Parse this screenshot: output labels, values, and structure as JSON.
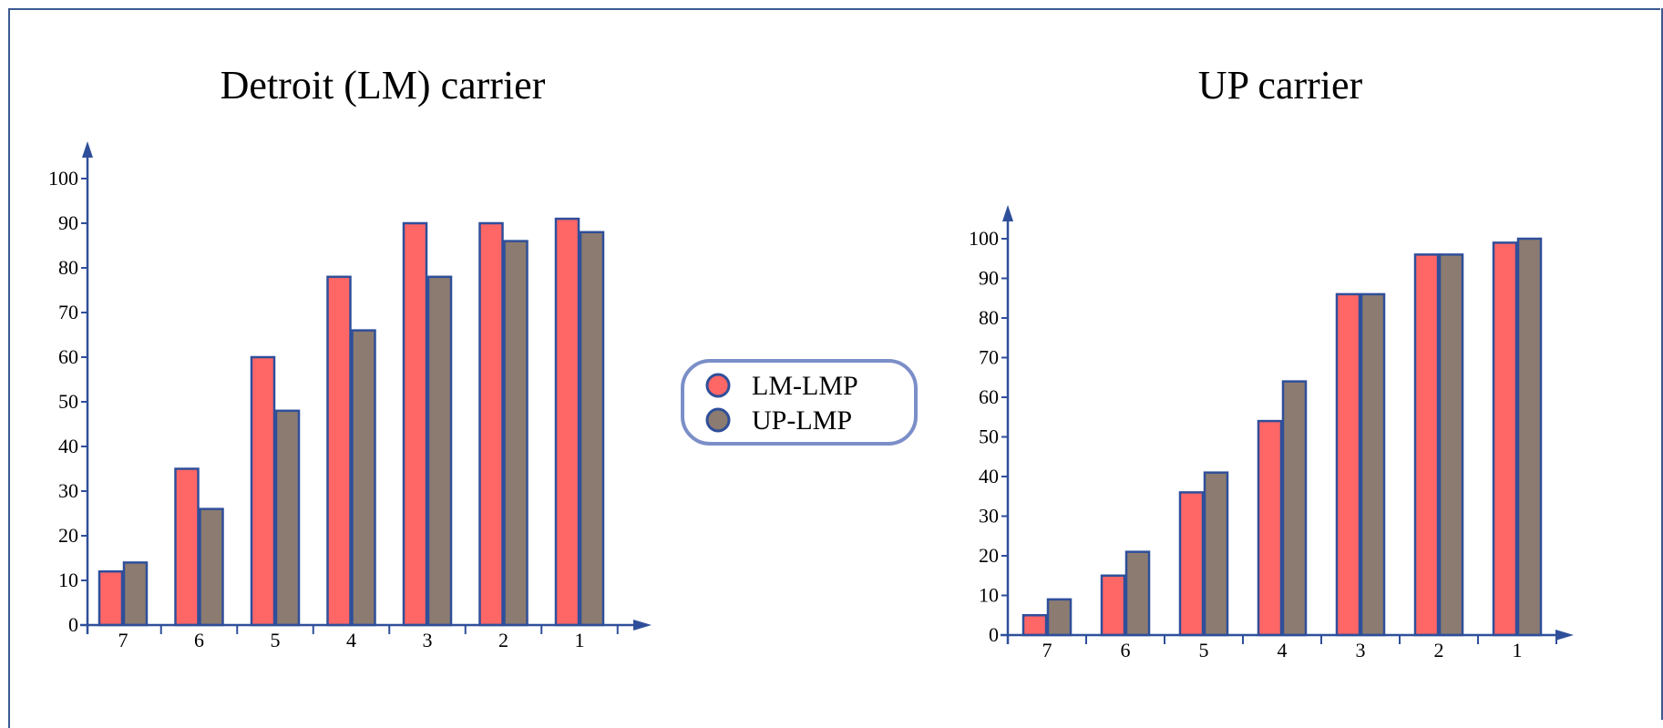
{
  "colors": {
    "axis": "#2f4f9a",
    "bar_outline": "#2f4f9a",
    "legend_border": "#7b8ec8",
    "frame": "#3c5a92"
  },
  "legend": {
    "placement": "center",
    "items": [
      {
        "label": "LM-LMP",
        "color": "#ff6666"
      },
      {
        "label": "UP-LMP",
        "color": "#8c7b70"
      }
    ]
  },
  "chart_data": [
    {
      "type": "bar",
      "title": "Detroit (LM) carrier",
      "xlabel": "",
      "ylabel": "",
      "categories": [
        "7",
        "6",
        "5",
        "4",
        "3",
        "2",
        "1"
      ],
      "ylim": [
        0,
        100
      ],
      "yticks": [
        0,
        10,
        20,
        30,
        40,
        50,
        60,
        70,
        80,
        90,
        100
      ],
      "series": [
        {
          "name": "LM-LMP",
          "values": [
            12,
            35,
            60,
            78,
            90,
            90,
            91
          ]
        },
        {
          "name": "UP-LMP",
          "values": [
            14,
            26,
            48,
            66,
            78,
            86,
            88
          ]
        }
      ]
    },
    {
      "type": "bar",
      "title": "UP carrier",
      "xlabel": "",
      "ylabel": "",
      "categories": [
        "7",
        "6",
        "5",
        "4",
        "3",
        "2",
        "1"
      ],
      "ylim": [
        0,
        100
      ],
      "yticks": [
        0,
        10,
        20,
        30,
        40,
        50,
        60,
        70,
        80,
        90,
        100
      ],
      "series": [
        {
          "name": "LM-LMP",
          "values": [
            5,
            15,
            36,
            54,
            86,
            96,
            99
          ]
        },
        {
          "name": "UP-LMP",
          "values": [
            9,
            21,
            41,
            64,
            86,
            96,
            100
          ]
        }
      ]
    }
  ]
}
